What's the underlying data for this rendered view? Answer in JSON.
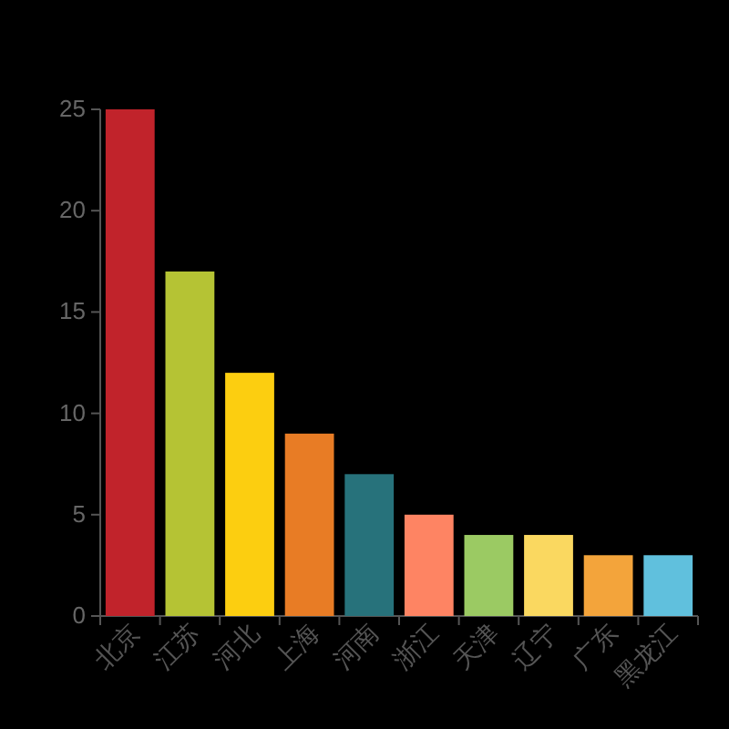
{
  "chart_data": {
    "type": "bar",
    "categories": [
      "北京",
      "江苏",
      "河北",
      "上海",
      "河南",
      "浙江",
      "天津",
      "辽宁",
      "广东",
      "黑龙江"
    ],
    "values": [
      25,
      17,
      12,
      9,
      7,
      5,
      4,
      4,
      3,
      3
    ],
    "colors": [
      "#c1232b",
      "#b5c334",
      "#fcce10",
      "#e87c25",
      "#27727b",
      "#fe8463",
      "#9bca63",
      "#fad860",
      "#f3a43b",
      "#60c0dd"
    ],
    "ylim": [
      0,
      25
    ],
    "yticks": [
      0,
      5,
      10,
      15,
      20,
      25
    ]
  }
}
